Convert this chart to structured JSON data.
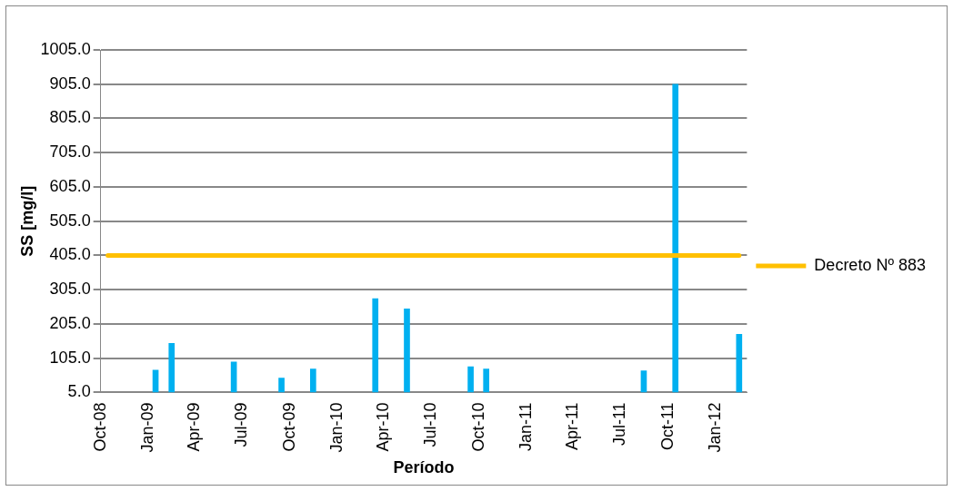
{
  "chart_data": {
    "type": "bar",
    "xlabel": "Período",
    "ylabel": "SS [mg/l]",
    "x": [
      "2009-01-15",
      "2009-02-15",
      "2009-06-15",
      "2009-09-15",
      "2009-11-15",
      "2010-03-15",
      "2010-05-15",
      "2010-09-15",
      "2010-10-15",
      "2011-08-15",
      "2011-10-15",
      "2012-02-15"
    ],
    "series": [
      {
        "color": "#00b0f0",
        "values": [
          70,
          148,
          94,
          47,
          73,
          279,
          249,
          80,
          73,
          68,
          905,
          175
        ]
      },
      {
        "type": "line",
        "name": "Decreto Nº 883",
        "color": "#ffc000",
        "x": [
          "2008-10-15",
          "2012-02-15"
        ],
        "values": [
          405,
          405
        ]
      }
    ],
    "xlim": [
      "2008-10-01",
      "2012-03-01"
    ],
    "xticks": [
      {
        "value": "2008-10-01",
        "label": "Oct-08"
      },
      {
        "value": "2009-01-01",
        "label": "Jan-09"
      },
      {
        "value": "2009-04-01",
        "label": "Apr-09"
      },
      {
        "value": "2009-07-01",
        "label": "Jul-09"
      },
      {
        "value": "2009-10-01",
        "label": "Oct-09"
      },
      {
        "value": "2010-01-01",
        "label": "Jan-10"
      },
      {
        "value": "2010-04-01",
        "label": "Apr-10"
      },
      {
        "value": "2010-07-01",
        "label": "Jul-10"
      },
      {
        "value": "2010-10-01",
        "label": "Oct-10"
      },
      {
        "value": "2011-01-01",
        "label": "Jan-11"
      },
      {
        "value": "2011-04-01",
        "label": "Apr-11"
      },
      {
        "value": "2011-07-01",
        "label": "Jul-11"
      },
      {
        "value": "2011-10-01",
        "label": "Oct-11"
      },
      {
        "value": "2012-01-01",
        "label": "Jan-12"
      }
    ],
    "ylim": [
      5,
      1005
    ],
    "yticks": [
      {
        "value": 5,
        "label": "5.0"
      },
      {
        "value": 105,
        "label": "105.0"
      },
      {
        "value": 205,
        "label": "205.0"
      },
      {
        "value": 305,
        "label": "305.0"
      },
      {
        "value": 405,
        "label": "405.0"
      },
      {
        "value": 505,
        "label": "505.0"
      },
      {
        "value": 605,
        "label": "605.0"
      },
      {
        "value": 705,
        "label": "705.0"
      },
      {
        "value": 805,
        "label": "805.0"
      },
      {
        "value": 905,
        "label": "905.0"
      },
      {
        "value": 1005,
        "label": "1005.0"
      }
    ],
    "grid": "y",
    "legend": "right"
  }
}
